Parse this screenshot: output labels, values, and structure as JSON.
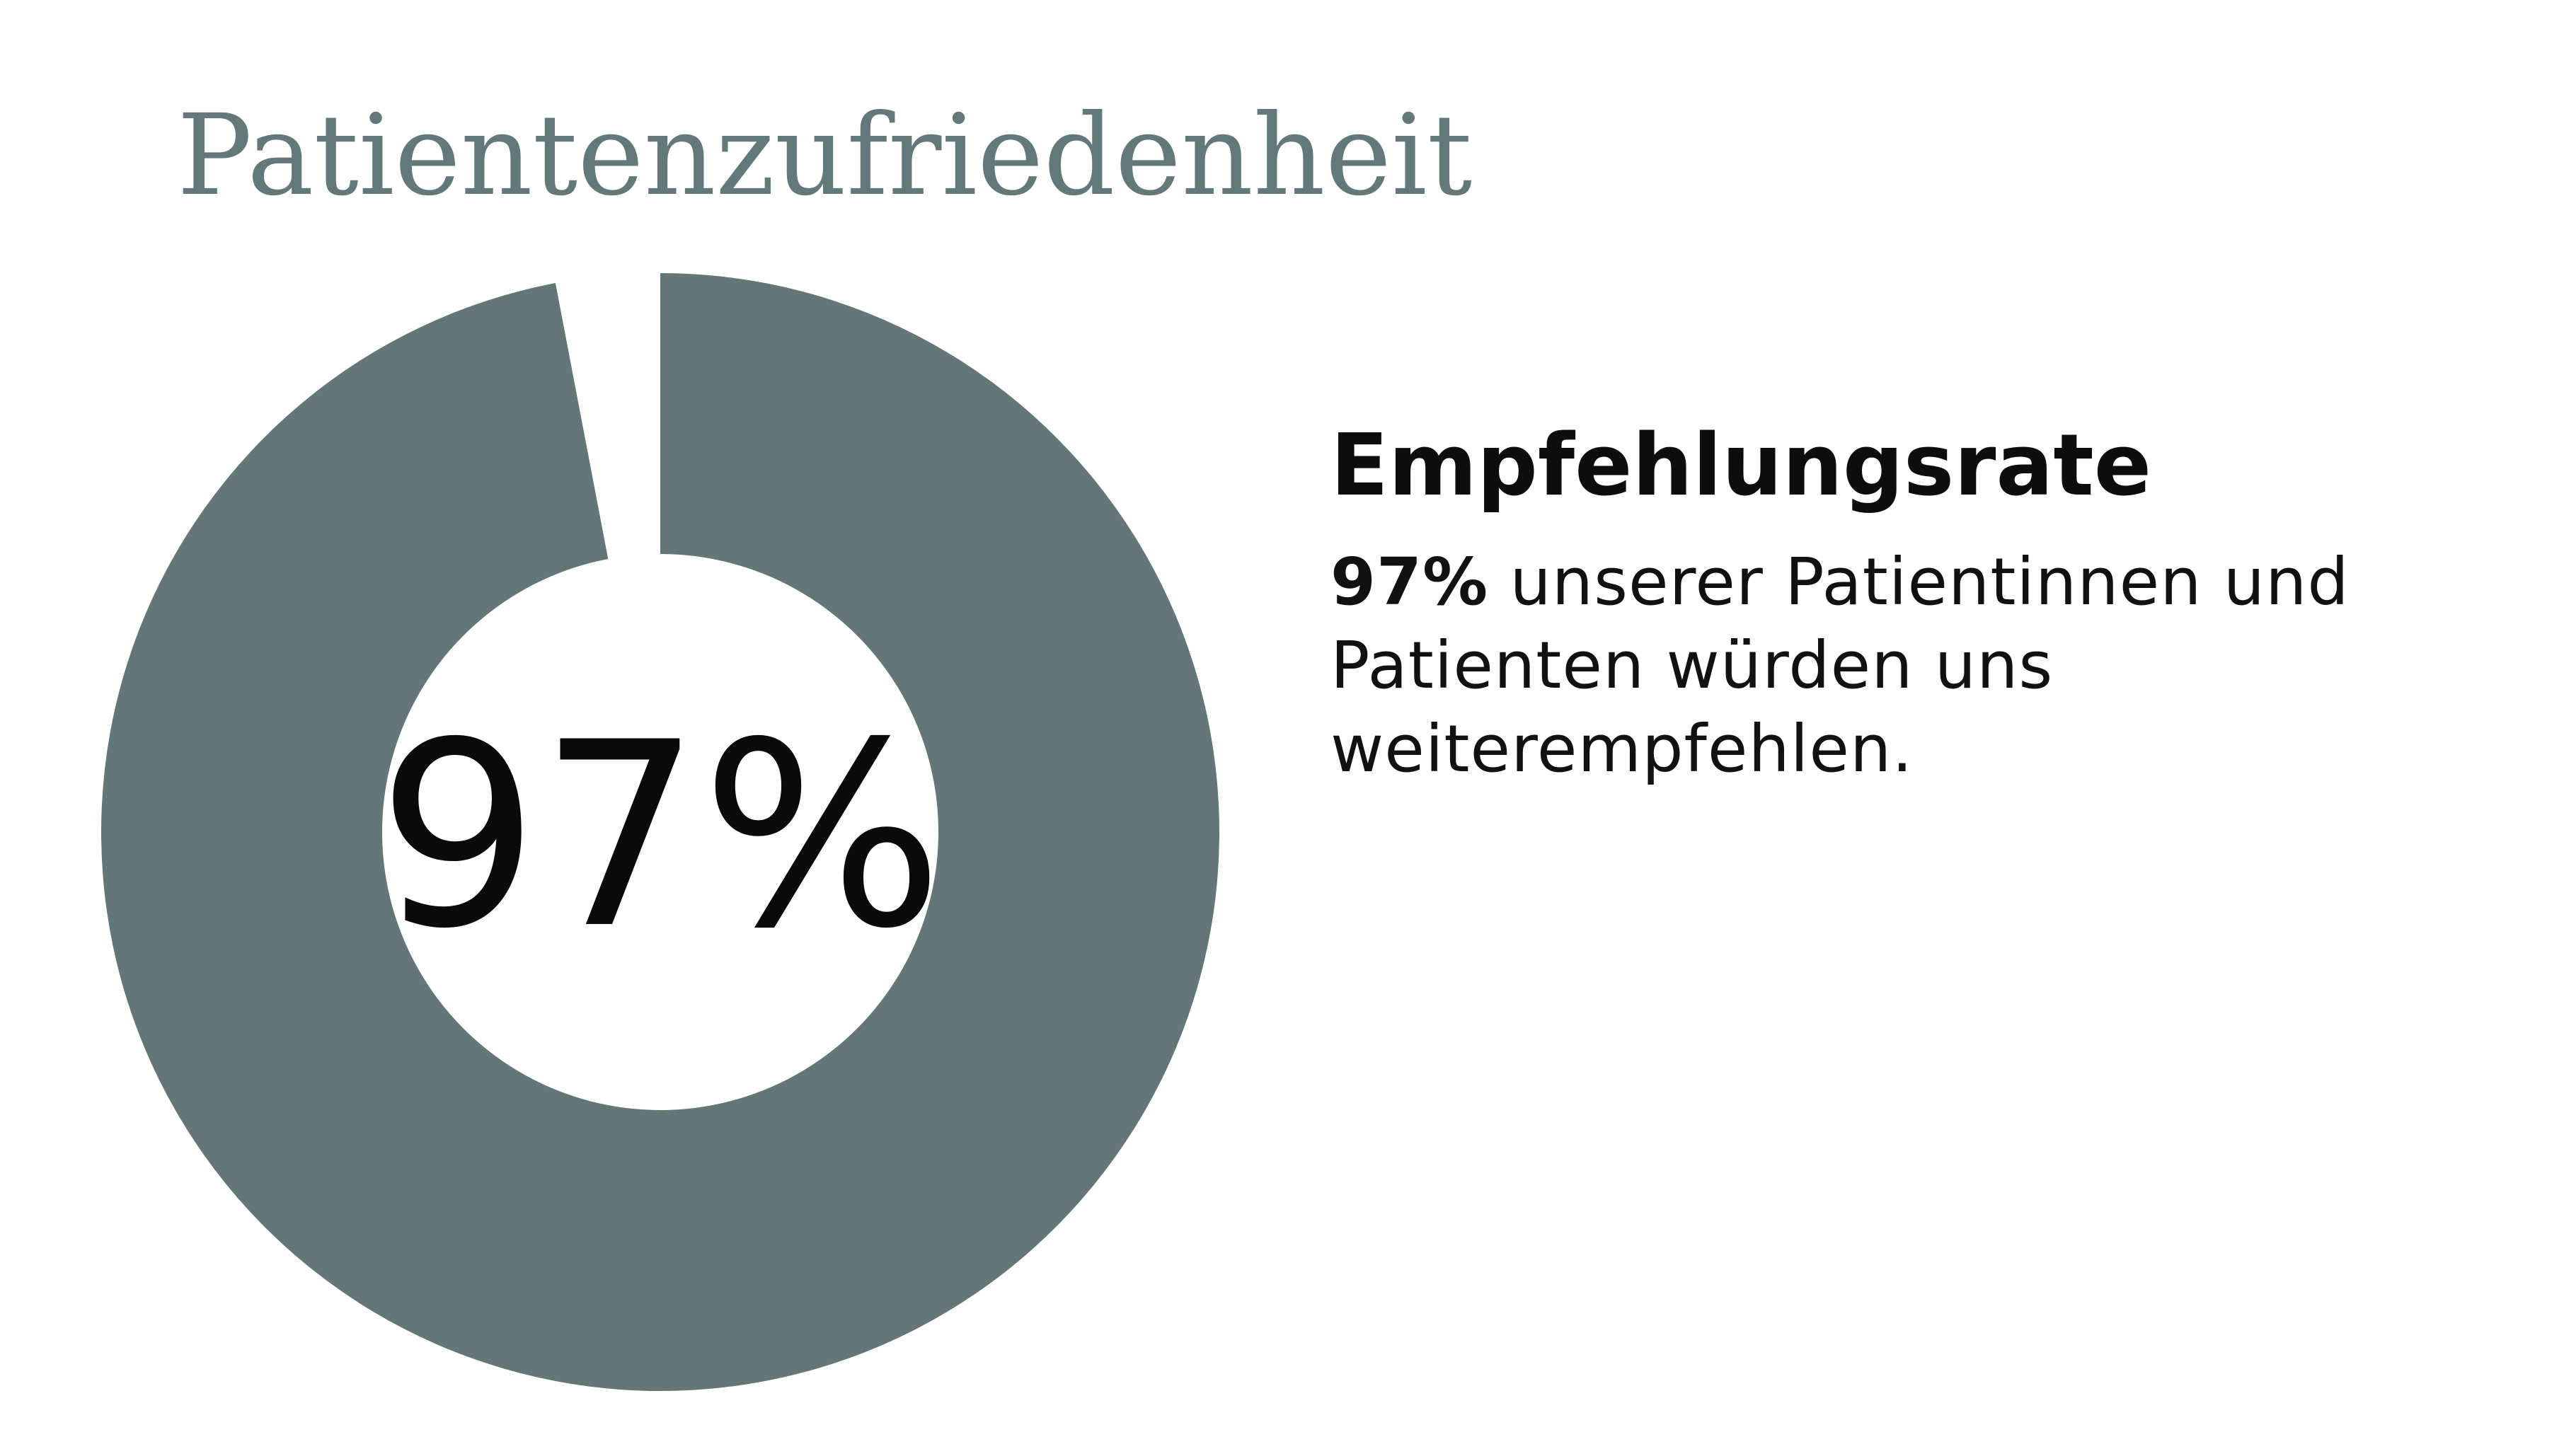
{
  "page": {
    "title": "Patientenzufriedenheit"
  },
  "colors": {
    "title": "#637878",
    "donut_fill": "#627776",
    "donut_track": "#ffffff",
    "center_text": "#0a0a0a"
  },
  "chart_data": {
    "type": "pie",
    "title": "Patientenzufriedenheit",
    "variant": "donut",
    "segments": [
      {
        "label": "Empfehlungsrate",
        "value": 97,
        "color": "#627776"
      },
      {
        "label": "",
        "value": 3,
        "color": "#ffffff"
      }
    ],
    "center_label": "97%",
    "start": "top",
    "direction": "clockwise"
  },
  "side": {
    "heading": "Empfehlungsrate",
    "body_strong": "97%",
    "body_rest": " unserer Patientinnen und Patienten würden uns weiterempfehlen."
  }
}
